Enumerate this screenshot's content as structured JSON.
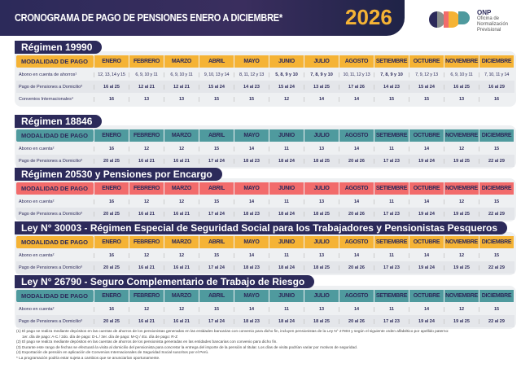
{
  "header": {
    "title": "CRONOGRAMA DE PAGO DE PENSIONES ENERO A DICIEMBRE*",
    "year": "2026"
  },
  "logo": {
    "name": "ONP",
    "line1": "Oficina de",
    "line2": "Normalización",
    "line3": "Previsional"
  },
  "colors": {
    "navy": "#2c2a5a",
    "orange": "#f5b335",
    "teal": "#4f9a9e",
    "coral": "#f26b6b"
  },
  "header_label": "MODALIDAD DE PAGO",
  "months": [
    "ENERO",
    "FEBRERO",
    "MARZO",
    "ABRIL",
    "MAYO",
    "JUNIO",
    "JULIO",
    "AGOSTO",
    "SETIEMBRE",
    "OCTUBRE",
    "NOVIEMBRE",
    "DICIEMBRE"
  ],
  "sections": [
    {
      "title": "Régimen 19990",
      "color": "#f5b335",
      "rows": [
        {
          "label": "Abono en cuenta de ahorros¹",
          "values": [
            "12, 13, 14 y 15",
            "6, 9, 10 y 11",
            "6, 9, 10 y 11",
            "9, 10, 13 y 14",
            "8, 11, 12 y 13",
            "5, 8, 9 y 10",
            "7, 8, 9 y 10",
            "10, 11, 12 y 13",
            "7, 8, 9 y 10",
            "7, 9, 12 y 13",
            "6, 9, 10 y 11",
            "7, 10, 11 y 14"
          ]
        },
        {
          "label": "Pago de Pensiones a Domicilio³",
          "values": [
            "16 al 25",
            "12 al 21",
            "12 al 21",
            "15 al 24",
            "14 al 23",
            "15 al 24",
            "13 al 25",
            "17 al 26",
            "14 al 23",
            "15 al 24",
            "16 al 25",
            "16 al 29"
          ]
        },
        {
          "label": "Convenios Internacionales⁴",
          "values": [
            "16",
            "13",
            "13",
            "15",
            "15",
            "12",
            "14",
            "14",
            "15",
            "15",
            "13",
            "16"
          ]
        }
      ]
    },
    {
      "title": "Régimen 18846",
      "color": "#4f9a9e",
      "rows": [
        {
          "label": "Abono en cuenta²",
          "values": [
            "16",
            "12",
            "12",
            "15",
            "14",
            "11",
            "13",
            "14",
            "11",
            "14",
            "12",
            "15"
          ]
        },
        {
          "label": "Pago de Pensiones a Domicilio³",
          "values": [
            "20 al 25",
            "16 al 21",
            "16 al 21",
            "17 al 24",
            "18 al 23",
            "18 al 24",
            "18 al 25",
            "20 al 26",
            "17 al 23",
            "19 al 24",
            "19 al 25",
            "22 al 29"
          ]
        }
      ]
    },
    {
      "title": "Régimen 20530 y Pensiones por Encargo",
      "color": "#f26b6b",
      "rows": [
        {
          "label": "Abono en cuenta²",
          "values": [
            "16",
            "12",
            "12",
            "15",
            "14",
            "11",
            "13",
            "14",
            "11",
            "14",
            "12",
            "15"
          ]
        },
        {
          "label": "Pago de Pensiones a Domicilio³",
          "values": [
            "20 al 25",
            "16 al 21",
            "16 al 21",
            "17 al 24",
            "18 al 23",
            "18 al 24",
            "18 al 25",
            "20 al 26",
            "17 al 23",
            "19 al 24",
            "19 al 25",
            "22 al 29"
          ]
        }
      ]
    },
    {
      "title": "Ley N° 30003 - Régimen Especial de Seguridad Social para los Trabajadores y Pensionistas Pesqueros",
      "color": "#f5b335",
      "rows": [
        {
          "label": "Abono en cuenta²",
          "values": [
            "16",
            "12",
            "12",
            "15",
            "14",
            "11",
            "13",
            "14",
            "11",
            "14",
            "12",
            "15"
          ]
        },
        {
          "label": "Pago de Pensiones a Domicilio³",
          "values": [
            "20 al 25",
            "16 al 21",
            "16 al 21",
            "17 al 24",
            "18 al 23",
            "18 al 24",
            "18 al 25",
            "20 al 26",
            "17 al 23",
            "19 al 24",
            "19 al 25",
            "22 al 29"
          ]
        }
      ]
    },
    {
      "title": "Ley N° 26790 - Seguro Complementario de Trabajo de Riesgo",
      "color": "#4f9a9e",
      "rows": [
        {
          "label": "Abono en cuenta²",
          "values": [
            "16",
            "12",
            "12",
            "15",
            "14",
            "11",
            "13",
            "14",
            "11",
            "14",
            "12",
            "15"
          ]
        },
        {
          "label": "Pago de Pensiones a Domicilio³",
          "values": [
            "20 al 25",
            "16 al 21",
            "16 al 21",
            "17 al 24",
            "18 al 23",
            "18 al 24",
            "18 al 25",
            "20 al 26",
            "17 al 23",
            "19 al 24",
            "19 al 25",
            "22 al 29"
          ]
        }
      ]
    }
  ],
  "footnotes": [
    "(1) El pago se realiza mediante depósitos en las cuentas de ahorros de los pensionistas generadas en las entidades bancarias con convenio para dicho fin, incluyen pensionistas de la Ley N° 27803 y según el siguiente orden alfabético por apellido paterno:",
    "1er. día de pago: A-C / 2do. día de pago: D-L / 3er. día de pago: M-Q / 4to. día de pago: R-Z",
    "(2) El pago se realiza mediante depósitos en las cuentas de ahorros de los pensionista generadas en las entidades bancarias con convenio para dicho fin.",
    "(3) Durante este rango de fechas se efectuará la visita al domicilio del pensionista para concretar la entrega del importe de la pensión al titular. Los días de visita podrían variar por motivos de seguridad.",
    "(4) Exportación de pensión en aplicación de Convenios Internacionales de Seguridad Social suscritos por el Perú.",
    "* La programación podría estar sujeta a cambios que se anunciarían oportunamente."
  ]
}
